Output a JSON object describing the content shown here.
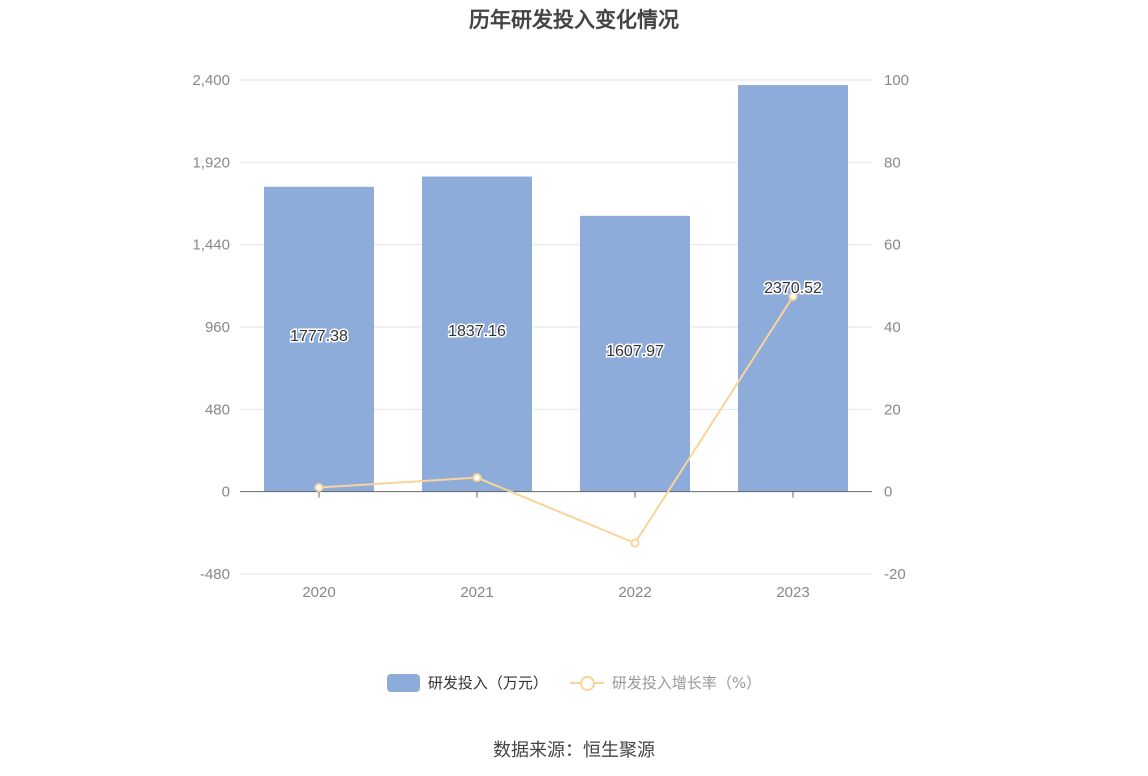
{
  "title": "历年研发投入变化情况",
  "source": "数据来源：恒生聚源",
  "colors": {
    "bar": "#8eacd9",
    "line": "#f9d49a",
    "grid": "#e3e6ee",
    "axis": "#666666",
    "tick_text": "#888888"
  },
  "legend": {
    "bar_label": "研发投入（万元）",
    "line_label": "研发投入增长率（%）"
  },
  "chart_data": {
    "type": "bar",
    "categories": [
      "2020",
      "2021",
      "2022",
      "2023"
    ],
    "series": [
      {
        "name": "研发投入（万元）",
        "type": "bar",
        "axis": "left",
        "values": [
          1777.38,
          1837.16,
          1607.97,
          2370.52
        ],
        "data_labels": [
          "1777.38",
          "1837.16",
          "1607.97",
          "2370.52"
        ]
      },
      {
        "name": "研发投入增长率（%）",
        "type": "line",
        "axis": "right",
        "values": [
          1.0,
          3.4,
          -12.5,
          47.4
        ]
      }
    ],
    "y_left": {
      "ylim": [
        -480,
        2400
      ],
      "ticks": [
        -480,
        0,
        480,
        960,
        1440,
        1920,
        2400
      ],
      "tick_labels": [
        "-480",
        "0",
        "480",
        "960",
        "1,440",
        "1,920",
        "2,400"
      ]
    },
    "y_right": {
      "ylim": [
        -20,
        100
      ],
      "ticks": [
        -20,
        0,
        20,
        40,
        60,
        80,
        100
      ],
      "tick_labels": [
        "-20",
        "0",
        "20",
        "40",
        "60",
        "80",
        "100"
      ]
    },
    "grid": true,
    "legend_position": "bottom"
  }
}
